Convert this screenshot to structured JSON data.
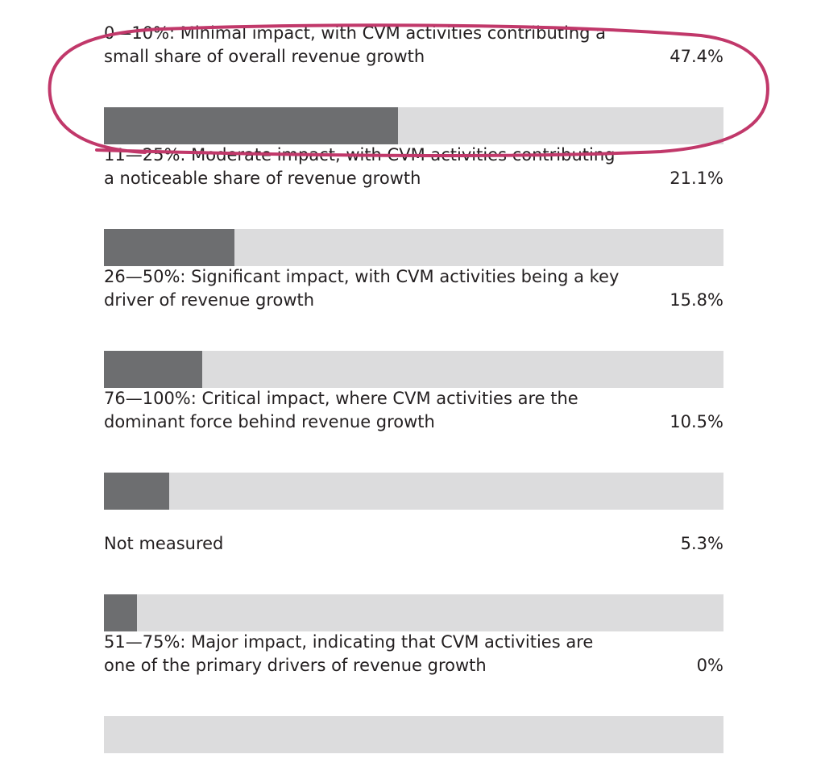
{
  "colors": {
    "bar_fill": "#6d6e70",
    "bar_track": "#dcdcdd",
    "highlight": "#c1386a",
    "text": "#231f20"
  },
  "chart_data": {
    "type": "bar",
    "orientation": "horizontal",
    "categories": [
      "0—10%: Minimal impact, with CVM activities contributing a small share of overall revenue growth",
      "11—25%: Moderate impact, with CVM activities contributing a noticeable share of revenue growth",
      "26—50%: Significant impact, with CVM activities being a key driver of revenue growth",
      "76—100%: Critical impact, where CVM activities are the dominant force behind revenue growth",
      "Not measured",
      "51—75%: Major impact, indicating that CVM activities are one of the primary drivers of revenue growth"
    ],
    "values": [
      47.4,
      21.1,
      15.8,
      10.5,
      5.3,
      0
    ],
    "value_labels": [
      "47.4%",
      "21.1%",
      "15.8%",
      "10.5%",
      "5.3%",
      "0%"
    ],
    "xlim": [
      0,
      100
    ],
    "unit": "%",
    "highlighted_category_index": 0,
    "grid": false,
    "legend": "none"
  }
}
